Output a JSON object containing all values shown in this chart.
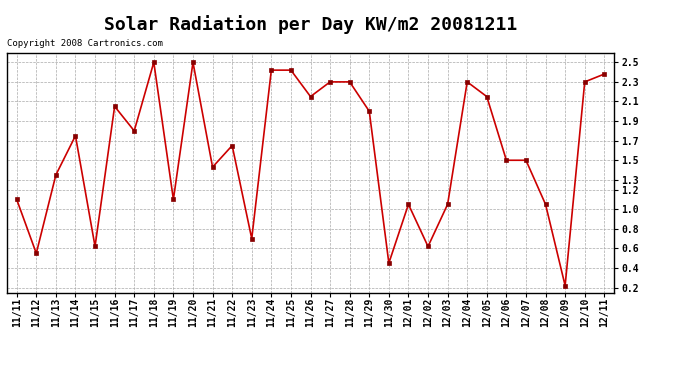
{
  "title": "Solar Radiation per Day KW/m2 20081211",
  "copyright": "Copyright 2008 Cartronics.com",
  "labels": [
    "11/11",
    "11/12",
    "11/13",
    "11/14",
    "11/15",
    "11/16",
    "11/17",
    "11/18",
    "11/19",
    "11/20",
    "11/21",
    "11/22",
    "11/23",
    "11/24",
    "11/25",
    "11/26",
    "11/27",
    "11/28",
    "11/29",
    "11/30",
    "12/01",
    "12/02",
    "12/03",
    "12/04",
    "12/05",
    "12/06",
    "12/07",
    "12/08",
    "12/09",
    "12/10",
    "12/11"
  ],
  "values": [
    1.1,
    0.55,
    1.35,
    1.75,
    0.62,
    2.05,
    1.8,
    2.5,
    1.1,
    2.5,
    1.43,
    1.65,
    0.7,
    2.42,
    2.42,
    2.15,
    2.3,
    2.3,
    2.0,
    0.45,
    1.05,
    0.62,
    1.05,
    2.3,
    2.15,
    1.5,
    1.5,
    1.05,
    0.22,
    2.3,
    2.38
  ],
  "line_color": "#cc0000",
  "marker_color": "#880000",
  "bg_color": "#ffffff",
  "plot_bg_color": "#ffffff",
  "grid_color": "#aaaaaa",
  "ylim": [
    0.15,
    2.6
  ],
  "ytick_vals": [
    0.2,
    0.4,
    0.6,
    0.8,
    1.0,
    1.2,
    1.3,
    1.5,
    1.7,
    1.9,
    2.1,
    2.3,
    2.5
  ],
  "title_fontsize": 13,
  "tick_fontsize": 7,
  "copyright_fontsize": 6.5
}
